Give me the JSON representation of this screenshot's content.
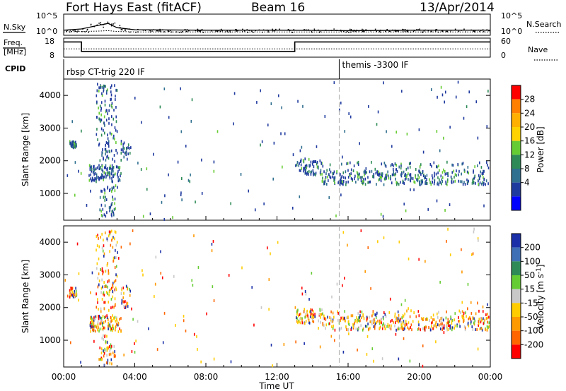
{
  "header": {
    "radar": "Fort Hays East (fitACF)",
    "beam": "Beam 16",
    "date": "13/Apr/2014"
  },
  "noise_panel": {
    "left_label": "N.Sky",
    "right_label": "N.Search",
    "left_ticks": [
      "10^5",
      "10^0"
    ],
    "right_ticks": [
      "10^5",
      "10^0"
    ]
  },
  "freq_panel": {
    "left_label_1": "Freq.",
    "left_label_2": "[MHz]",
    "right_label": "Nave",
    "left_ticks": [
      "18",
      "8"
    ],
    "right_ticks": [
      "60",
      "0"
    ]
  },
  "cpid_panel": {
    "label": "CPID",
    "modes": [
      {
        "name": "rbsp CT-trig 220 IF",
        "start_hour": 0.0
      },
      {
        "name": "themis -3300 IF",
        "start_hour": 15.5
      }
    ]
  },
  "x_axis": {
    "label": "Time UT",
    "ticks": [
      "00:00",
      "04:00",
      "08:00",
      "12:00",
      "16:00",
      "20:00",
      "00:00"
    ],
    "tick_hours": [
      0,
      4,
      8,
      12,
      16,
      20,
      24
    ],
    "range": [
      0,
      24
    ]
  },
  "marker_hour": 15.5,
  "panels": {
    "power": {
      "ylabel": "Slant Range [km]",
      "yticks": [
        "1000",
        "2000",
        "3000",
        "4000"
      ],
      "cbar_label": "Power [dB]",
      "cbar_ticks": [
        "28",
        "24",
        "20",
        "16",
        "12",
        "8",
        "4"
      ],
      "cbar_colors": [
        "#ff0000",
        "#ff7f00",
        "#ffb000",
        "#ffd200",
        "#66cc33",
        "#2e8b57",
        "#2f6f8f",
        "#1f3a9f",
        "#0000ff"
      ]
    },
    "velocity": {
      "ylabel": "Slant Range [km]",
      "yticks": [
        "1000",
        "2000",
        "3000",
        "4000"
      ],
      "cbar_label": "Velocity [m s^-1]",
      "cbar_ticks": [
        "200",
        "100",
        "50",
        "15",
        "-15",
        "-50",
        "-100",
        "-200"
      ],
      "cbar_colors": [
        "#1a2fa8",
        "#3f6fb5",
        "#2e8b57",
        "#66cc33",
        "#c8c8c8",
        "#ffcc00",
        "#ff9900",
        "#ff6600",
        "#ff0000"
      ]
    }
  },
  "chart_data": [
    {
      "type": "line",
      "title": "N.Sky / N.Search",
      "x": [
        0,
        1,
        2,
        2.5,
        3,
        4,
        8,
        12,
        16,
        20,
        24
      ],
      "series": [
        {
          "name": "N.Sky",
          "values": [
            1.2,
            1.5,
            2.4,
            2.8,
            1.8,
            1.3,
            1.2,
            1.2,
            1.1,
            1.2,
            1.2
          ]
        },
        {
          "name": "N.Search",
          "values": [
            0.8,
            0.9,
            1.0,
            1.1,
            0.9,
            0.8,
            0.8,
            0.8,
            0.8,
            0.8,
            0.8
          ]
        }
      ],
      "xlabel": "Time UT",
      "ylim": [
        0,
        5
      ]
    },
    {
      "type": "line",
      "title": "Freq / Nave",
      "x": [
        0,
        1,
        1,
        13,
        13,
        24
      ],
      "series": [
        {
          "name": "Freq.",
          "values": [
            16,
            16,
            11,
            11,
            16,
            16
          ]
        },
        {
          "name": "Nave",
          "values": [
            26,
            26,
            26,
            26,
            26,
            26
          ]
        }
      ],
      "ylim": [
        8,
        18
      ]
    },
    {
      "type": "scatter",
      "title": "Power",
      "xlim": [
        0,
        24
      ],
      "ylim": [
        180,
        4500
      ],
      "xlabel": "Time UT",
      "ylabel": "Slant Range [km]",
      "clusters": [
        {
          "x": [
            0.3,
            0.7
          ],
          "y": [
            2450,
            2650
          ],
          "n": 40
        },
        {
          "x": [
            1.4,
            3.2
          ],
          "y": [
            1400,
            1900
          ],
          "n": 110
        },
        {
          "x": [
            1.8,
            3.0
          ],
          "y": [
            2000,
            4400
          ],
          "n": 120
        },
        {
          "x": [
            2.0,
            2.9
          ],
          "y": [
            300,
            1300
          ],
          "n": 50
        },
        {
          "x": [
            3.2,
            3.8
          ],
          "y": [
            2000,
            2700
          ],
          "n": 25
        },
        {
          "x": [
            13.0,
            14.5
          ],
          "y": [
            1600,
            2100
          ],
          "n": 70
        },
        {
          "x": [
            14.5,
            24.0
          ],
          "y": [
            1300,
            1750
          ],
          "n": 320
        },
        {
          "x": [
            14.5,
            24.0
          ],
          "y": [
            1750,
            2000
          ],
          "n": 60
        },
        {
          "x": [
            0.0,
            24.0
          ],
          "y": [
            200,
            4450
          ],
          "n": 150
        }
      ]
    },
    {
      "type": "scatter",
      "title": "Velocity",
      "xlim": [
        0,
        24
      ],
      "ylim": [
        180,
        4500
      ],
      "xlabel": "Time UT",
      "ylabel": "Slant Range [km]",
      "clusters": [
        {
          "x": [
            0.3,
            0.7
          ],
          "y": [
            2350,
            2650
          ],
          "n": 40
        },
        {
          "x": [
            1.4,
            3.2
          ],
          "y": [
            1300,
            1800
          ],
          "n": 110
        },
        {
          "x": [
            1.8,
            3.0
          ],
          "y": [
            1900,
            4400
          ],
          "n": 120
        },
        {
          "x": [
            2.0,
            2.9
          ],
          "y": [
            250,
            1200
          ],
          "n": 50
        },
        {
          "x": [
            3.2,
            3.8
          ],
          "y": [
            2000,
            2700
          ],
          "n": 25
        },
        {
          "x": [
            13.0,
            14.5
          ],
          "y": [
            1550,
            2000
          ],
          "n": 70
        },
        {
          "x": [
            14.5,
            24.0
          ],
          "y": [
            1350,
            1750
          ],
          "n": 320
        },
        {
          "x": [
            14.5,
            24.0
          ],
          "y": [
            1750,
            1950
          ],
          "n": 60
        },
        {
          "x": [
            0.0,
            24.0
          ],
          "y": [
            200,
            4450
          ],
          "n": 150
        }
      ]
    }
  ]
}
